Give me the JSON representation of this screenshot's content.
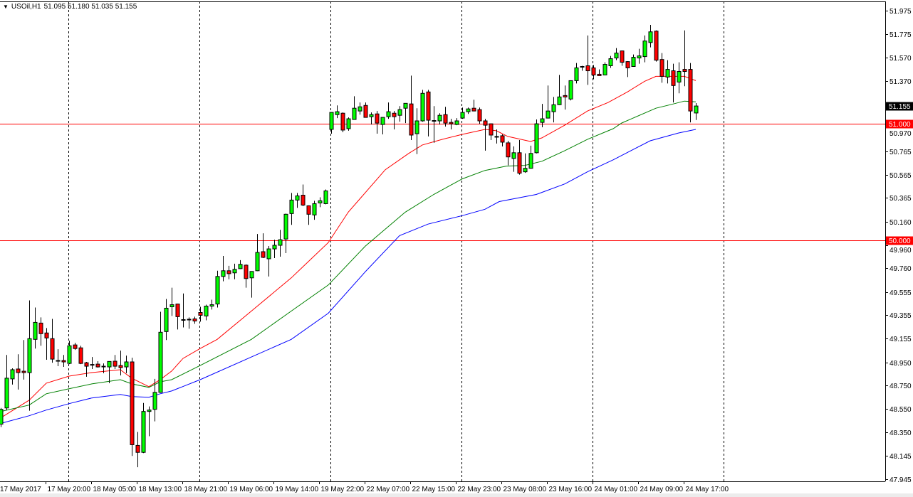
{
  "header": {
    "menu_icon": "triangle-down-icon",
    "symbol": "USOil,H1",
    "ohlc": "51.095 51.180 51.035 51.155"
  },
  "colors": {
    "background": "#ffffff",
    "bull_candle": "#00ff00",
    "bear_candle": "#ff0000",
    "ma_red": "#ff0000",
    "ma_green": "#008000",
    "ma_blue": "#0000ff",
    "level_line": "#ff0000",
    "current_price_bg": "#000000"
  },
  "chart_data": {
    "type": "candlestick",
    "symbol": "USOil",
    "timeframe": "H1",
    "ylim": [
      47.945,
      51.975
    ],
    "grid": false,
    "y_ticks": [
      "51.975",
      "51.775",
      "51.570",
      "51.370",
      "50.970",
      "50.765",
      "50.565",
      "50.365",
      "50.160",
      "49.960",
      "49.760",
      "49.555",
      "49.355",
      "49.155",
      "48.950",
      "48.750",
      "48.550",
      "48.350",
      "48.145",
      "47.945"
    ],
    "x_labels": [
      "17 May 2017",
      "17 May 20:00",
      "18 May 05:00",
      "18 May 13:00",
      "18 May 21:00",
      "19 May 06:00",
      "19 May 14:00",
      "19 May 22:00",
      "22 May 07:00",
      "22 May 15:00",
      "22 May 23:00",
      "23 May 08:00",
      "23 May 16:00",
      "24 May 01:00",
      "24 May 09:00",
      "24 May 17:00"
    ],
    "day_separators_bar": [
      12,
      35,
      58,
      81,
      104,
      127
    ],
    "horizontal_levels": [
      {
        "price": 51.0,
        "label": "51.000"
      },
      {
        "price": 50.0,
        "label": "50.000"
      }
    ],
    "current_price": {
      "price": 51.155,
      "label": "51.155"
    },
    "candles_ohlc": [
      [
        48.419,
        48.558,
        48.394,
        48.546
      ],
      [
        48.558,
        49.014,
        48.54,
        48.814
      ],
      [
        48.808,
        48.899,
        48.759,
        48.887
      ],
      [
        48.893,
        49.02,
        48.716,
        48.862
      ],
      [
        48.874,
        49.142,
        48.802,
        48.862
      ],
      [
        48.862,
        49.483,
        48.534,
        49.154
      ],
      [
        49.148,
        49.422,
        49.069,
        49.294
      ],
      [
        49.288,
        49.337,
        49.093,
        49.197
      ],
      [
        49.203,
        49.245,
        48.972,
        49.16
      ],
      [
        49.154,
        49.324,
        48.947,
        48.978
      ],
      [
        48.966,
        49.063,
        48.917,
        48.962
      ],
      [
        48.966,
        49.014,
        48.911,
        48.954
      ],
      [
        48.941,
        49.136,
        48.935,
        49.093
      ],
      [
        49.1,
        49.118,
        49.057,
        49.069
      ],
      [
        49.075,
        49.093,
        48.935,
        48.941
      ],
      [
        48.947,
        48.954,
        48.826,
        48.917
      ],
      [
        48.929,
        48.996,
        48.893,
        48.932
      ],
      [
        48.935,
        48.96,
        48.905,
        48.911
      ],
      [
        48.917,
        48.941,
        48.857,
        48.912
      ],
      [
        48.911,
        48.96,
        48.771,
        48.958
      ],
      [
        48.96,
        49.014,
        48.893,
        48.917
      ],
      [
        48.923,
        49.051,
        48.838,
        48.905
      ],
      [
        48.911,
        49.008,
        48.857,
        48.954
      ],
      [
        48.954,
        48.99,
        48.145,
        48.242
      ],
      [
        48.236,
        48.352,
        48.048,
        48.176
      ],
      [
        48.176,
        48.601,
        48.17,
        48.528
      ],
      [
        48.528,
        48.571,
        48.315,
        48.54
      ],
      [
        48.546,
        48.808,
        48.443,
        48.692
      ],
      [
        48.692,
        49.385,
        48.688,
        49.209
      ],
      [
        49.215,
        49.495,
        49.142,
        49.416
      ],
      [
        49.428,
        49.592,
        49.349,
        49.446
      ],
      [
        49.452,
        49.455,
        49.233,
        49.343
      ],
      [
        49.318,
        49.543,
        49.251,
        49.315
      ],
      [
        49.318,
        49.337,
        49.239,
        49.321
      ],
      [
        49.324,
        49.343,
        49.282,
        49.306
      ],
      [
        49.379,
        49.428,
        49.3,
        49.355
      ],
      [
        49.349,
        49.446,
        49.312,
        49.434
      ],
      [
        49.434,
        49.489,
        49.404,
        49.446
      ],
      [
        49.452,
        49.738,
        49.422,
        49.689
      ],
      [
        49.689,
        49.865,
        49.647,
        49.738
      ],
      [
        49.738,
        49.78,
        49.665,
        49.713
      ],
      [
        49.72,
        49.799,
        49.665,
        49.75
      ],
      [
        49.756,
        49.829,
        49.753,
        49.793
      ],
      [
        49.786,
        49.793,
        49.592,
        49.671
      ],
      [
        49.677,
        49.732,
        49.507,
        49.732
      ],
      [
        49.738,
        50.054,
        49.735,
        49.896
      ],
      [
        49.902,
        50.06,
        49.847,
        49.853
      ],
      [
        49.841,
        49.951,
        49.689,
        49.926
      ],
      [
        49.926,
        50.005,
        49.847,
        49.957
      ],
      [
        49.957,
        50.09,
        49.859,
        50.005
      ],
      [
        50.011,
        50.23,
        49.89,
        50.224
      ],
      [
        50.23,
        50.407,
        50.133,
        50.346
      ],
      [
        50.346,
        50.407,
        50.279,
        50.382
      ],
      [
        50.388,
        50.48,
        50.293,
        50.303
      ],
      [
        50.297,
        50.3,
        50.133,
        50.224
      ],
      [
        50.218,
        50.34,
        50.176,
        50.315
      ],
      [
        50.321,
        50.37,
        50.285,
        50.34
      ],
      [
        50.315,
        50.437,
        50.309,
        50.425
      ],
      [
        50.954,
        51.1,
        50.917,
        51.1
      ],
      [
        51.081,
        51.16,
        51.051,
        51.106
      ],
      [
        51.093,
        51.1,
        50.929,
        50.948
      ],
      [
        50.96,
        51.057,
        50.942,
        51.045
      ],
      [
        51.039,
        51.239,
        51.036,
        51.136
      ],
      [
        51.112,
        51.185,
        51.081,
        51.148
      ],
      [
        51.16,
        51.185,
        51.057,
        51.057
      ],
      [
        51.063,
        51.1,
        50.996,
        51.081
      ],
      [
        51.087,
        51.112,
        50.917,
        51.008
      ],
      [
        50.996,
        51.057,
        50.911,
        51.057
      ],
      [
        51.063,
        51.185,
        51.045,
        51.106
      ],
      [
        51.093,
        51.112,
        50.954,
        51.063
      ],
      [
        51.075,
        51.154,
        51.02,
        51.124
      ],
      [
        51.136,
        51.178,
        51.008,
        51.178
      ],
      [
        51.173,
        51.416,
        50.862,
        50.905
      ],
      [
        50.917,
        51.136,
        50.741,
        51.027
      ],
      [
        51.027,
        51.294,
        51.02,
        51.264
      ],
      [
        51.276,
        51.294,
        50.893,
        51.033
      ],
      [
        51.027,
        51.154,
        50.838,
        51.03
      ],
      [
        51.027,
        51.093,
        50.996,
        51.075
      ],
      [
        51.081,
        51.148,
        50.978,
        51.008
      ],
      [
        51.014,
        51.045,
        50.954,
        51.002
      ],
      [
        50.996,
        51.051,
        50.99,
        51.027
      ],
      [
        51.051,
        51.142,
        51.045,
        51.1
      ],
      [
        51.106,
        51.142,
        51.087,
        51.13
      ],
      [
        51.136,
        51.209,
        51.112,
        51.112
      ],
      [
        51.124,
        51.142,
        51.002,
        51.027
      ],
      [
        51.027,
        51.045,
        50.771,
        50.99
      ],
      [
        51.002,
        51.005,
        50.862,
        50.905
      ],
      [
        50.893,
        50.954,
        50.832,
        50.89
      ],
      [
        50.899,
        50.911,
        50.807,
        50.844
      ],
      [
        50.838,
        50.856,
        50.644,
        50.717
      ],
      [
        50.704,
        50.808,
        50.589,
        50.753
      ],
      [
        50.753,
        50.862,
        50.565,
        50.577
      ],
      [
        50.589,
        50.747,
        50.58,
        50.619
      ],
      [
        50.619,
        50.814,
        50.616,
        50.747
      ],
      [
        50.753,
        51.039,
        50.747,
        51.002
      ],
      [
        51.014,
        51.173,
        50.972,
        51.045
      ],
      [
        51.051,
        51.331,
        51.048,
        51.112
      ],
      [
        51.106,
        51.233,
        51.014,
        51.166
      ],
      [
        51.166,
        51.422,
        51.163,
        51.233
      ],
      [
        51.245,
        51.331,
        51.124,
        51.233
      ],
      [
        51.215,
        51.373,
        51.203,
        51.373
      ],
      [
        51.373,
        51.525,
        51.349,
        51.483
      ],
      [
        51.489,
        51.501,
        51.458,
        51.495
      ],
      [
        51.501,
        51.762,
        51.337,
        51.458
      ],
      [
        51.483,
        51.507,
        51.385,
        51.422
      ],
      [
        51.428,
        51.47,
        51.416,
        51.416
      ],
      [
        51.422,
        51.531,
        51.419,
        51.513
      ],
      [
        51.501,
        51.586,
        51.483,
        51.562
      ],
      [
        51.568,
        51.653,
        51.549,
        51.61
      ],
      [
        51.629,
        51.632,
        51.501,
        51.531
      ],
      [
        51.537,
        51.54,
        51.404,
        51.483
      ],
      [
        51.495,
        51.598,
        51.492,
        51.574
      ],
      [
        51.568,
        51.647,
        51.519,
        51.586
      ],
      [
        51.58,
        51.762,
        51.531,
        51.714
      ],
      [
        51.701,
        51.853,
        51.659,
        51.793
      ],
      [
        51.799,
        51.805,
        51.537,
        51.549
      ],
      [
        51.555,
        51.61,
        51.355,
        51.41
      ],
      [
        51.404,
        51.549,
        51.349,
        51.47
      ],
      [
        51.458,
        51.519,
        51.185,
        51.331
      ],
      [
        51.361,
        51.531,
        51.264,
        51.452
      ],
      [
        51.47,
        51.805,
        51.325,
        51.452
      ],
      [
        51.47,
        51.525,
        51.014,
        51.112
      ],
      [
        51.095,
        51.18,
        51.035,
        51.155
      ]
    ],
    "moving_averages": [
      {
        "color": "#ff0000",
        "points": [
          [
            0,
            48.473
          ],
          [
            5,
            48.625
          ],
          [
            8,
            48.771
          ],
          [
            12,
            48.832
          ],
          [
            16,
            48.862
          ],
          [
            21,
            48.887
          ],
          [
            23,
            48.814
          ],
          [
            26,
            48.741
          ],
          [
            28,
            48.802
          ],
          [
            30,
            48.875
          ],
          [
            32,
            48.984
          ],
          [
            35,
            49.069
          ],
          [
            38,
            49.148
          ],
          [
            44,
            49.391
          ],
          [
            51,
            49.677
          ],
          [
            54,
            49.817
          ],
          [
            57.5,
            49.981
          ],
          [
            61,
            50.242
          ],
          [
            67.5,
            50.607
          ],
          [
            71.6,
            50.747
          ],
          [
            74,
            50.82
          ],
          [
            77.5,
            50.868
          ],
          [
            81,
            50.911
          ],
          [
            85,
            50.954
          ],
          [
            87,
            50.942
          ],
          [
            89,
            50.893
          ],
          [
            93,
            50.85
          ],
          [
            95,
            50.881
          ],
          [
            99,
            50.99
          ],
          [
            103,
            51.112
          ],
          [
            106.6,
            51.185
          ],
          [
            110,
            51.276
          ],
          [
            113,
            51.367
          ],
          [
            115,
            51.41
          ],
          [
            120,
            51.41
          ],
          [
            122,
            51.373
          ]
        ]
      },
      {
        "color": "#008000",
        "points": [
          [
            0,
            48.528
          ],
          [
            5,
            48.583
          ],
          [
            8,
            48.68
          ],
          [
            12,
            48.723
          ],
          [
            16,
            48.765
          ],
          [
            21,
            48.801
          ],
          [
            23,
            48.765
          ],
          [
            26,
            48.735
          ],
          [
            28,
            48.783
          ],
          [
            30,
            48.801
          ],
          [
            35,
            48.923
          ],
          [
            44,
            49.148
          ],
          [
            51,
            49.391
          ],
          [
            57.5,
            49.616
          ],
          [
            64,
            49.95
          ],
          [
            71,
            50.242
          ],
          [
            76,
            50.394
          ],
          [
            81,
            50.528
          ],
          [
            85,
            50.601
          ],
          [
            88.75,
            50.638
          ],
          [
            92,
            50.644
          ],
          [
            95,
            50.68
          ],
          [
            99,
            50.771
          ],
          [
            103,
            50.869
          ],
          [
            107.5,
            50.96
          ],
          [
            109,
            51.009
          ],
          [
            115,
            51.136
          ],
          [
            117.5,
            51.166
          ],
          [
            120,
            51.197
          ],
          [
            122,
            51.191
          ]
        ]
      },
      {
        "color": "#0000ff",
        "points": [
          [
            0,
            48.425
          ],
          [
            5,
            48.491
          ],
          [
            8,
            48.54
          ],
          [
            12,
            48.595
          ],
          [
            16,
            48.644
          ],
          [
            21,
            48.674
          ],
          [
            23,
            48.656
          ],
          [
            26,
            48.65
          ],
          [
            28,
            48.68
          ],
          [
            30,
            48.704
          ],
          [
            35,
            48.801
          ],
          [
            44,
            48.996
          ],
          [
            51,
            49.148
          ],
          [
            57.5,
            49.373
          ],
          [
            64,
            49.73
          ],
          [
            70,
            50.04
          ],
          [
            75,
            50.139
          ],
          [
            81,
            50.212
          ],
          [
            85,
            50.267
          ],
          [
            87.5,
            50.333
          ],
          [
            94,
            50.394
          ],
          [
            99,
            50.485
          ],
          [
            103,
            50.589
          ],
          [
            107.5,
            50.692
          ],
          [
            114,
            50.856
          ],
          [
            119,
            50.923
          ],
          [
            122,
            50.954
          ]
        ]
      }
    ]
  }
}
